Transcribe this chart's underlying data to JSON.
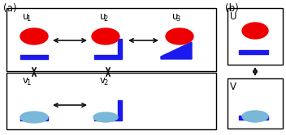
{
  "fig_width": 3.52,
  "fig_height": 1.67,
  "dpi": 100,
  "bg_color": "#ffffff",
  "panel_a_label": "(a)",
  "panel_b_label": "(b)",
  "red_ellipse_color": "#ee0000",
  "blue_ellipse_color": "#7ab8d9",
  "bar_color": "#1a1aee",
  "arrow_color": "#111111",
  "unbound_label": "U",
  "bound_label": "V",
  "u_labels": [
    "u",
    "u",
    "u"
  ],
  "u_subs": [
    "1",
    "2",
    "3"
  ],
  "v_labels": [
    "v",
    "v"
  ],
  "v_subs": [
    "1",
    "2"
  ]
}
